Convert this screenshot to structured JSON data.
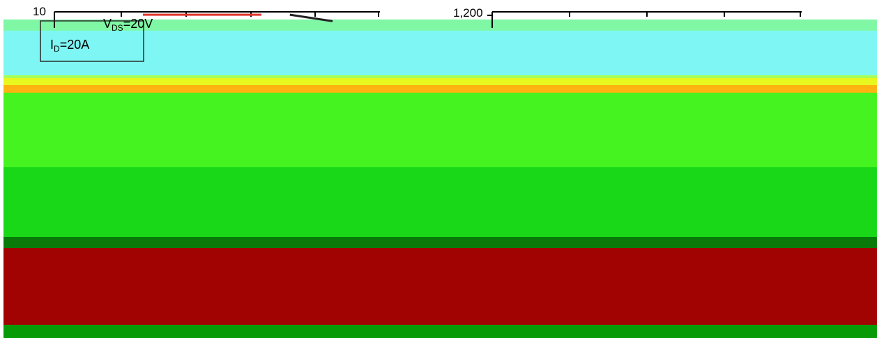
{
  "background_bands": [
    {
      "name": "top-white",
      "color": "#ffffff"
    },
    {
      "name": "mint",
      "color": "#7ff7a4"
    },
    {
      "name": "cyan",
      "color": "#7ef7f4"
    },
    {
      "name": "light-green",
      "color": "#a7ff57"
    },
    {
      "name": "yellow",
      "color": "#e8f81e"
    },
    {
      "name": "orange",
      "color": "#ffb310"
    },
    {
      "name": "green",
      "color": "#44f31f"
    },
    {
      "name": "bright-green",
      "color": "#18d818"
    },
    {
      "name": "dark-green",
      "color": "#097a09"
    },
    {
      "name": "dark-red",
      "color": "#a10202"
    },
    {
      "name": "bottom-green",
      "color": "#079b07"
    }
  ],
  "chart_data": [
    {
      "type": "line",
      "ylim_top_label": "10",
      "annotations": [
        "V",
        "=20V",
        "I",
        "=20A"
      ],
      "annotation_subscripts": [
        "DS",
        "D"
      ],
      "series": [
        {
          "color": "#e0352c",
          "points": [
            [
              0.0,
              9.6
            ],
            [
              0.5,
              9.6
            ]
          ]
        },
        {
          "color": "#222222",
          "points": [
            [
              0.62,
              9.6
            ],
            [
              0.8,
              8.7
            ]
          ]
        }
      ],
      "colors": {
        "accent": "#e0352c",
        "axis": "#000000"
      }
    },
    {
      "type": "line",
      "ylim_top_label": "1,200",
      "colors": {
        "axis": "#000000"
      }
    }
  ]
}
